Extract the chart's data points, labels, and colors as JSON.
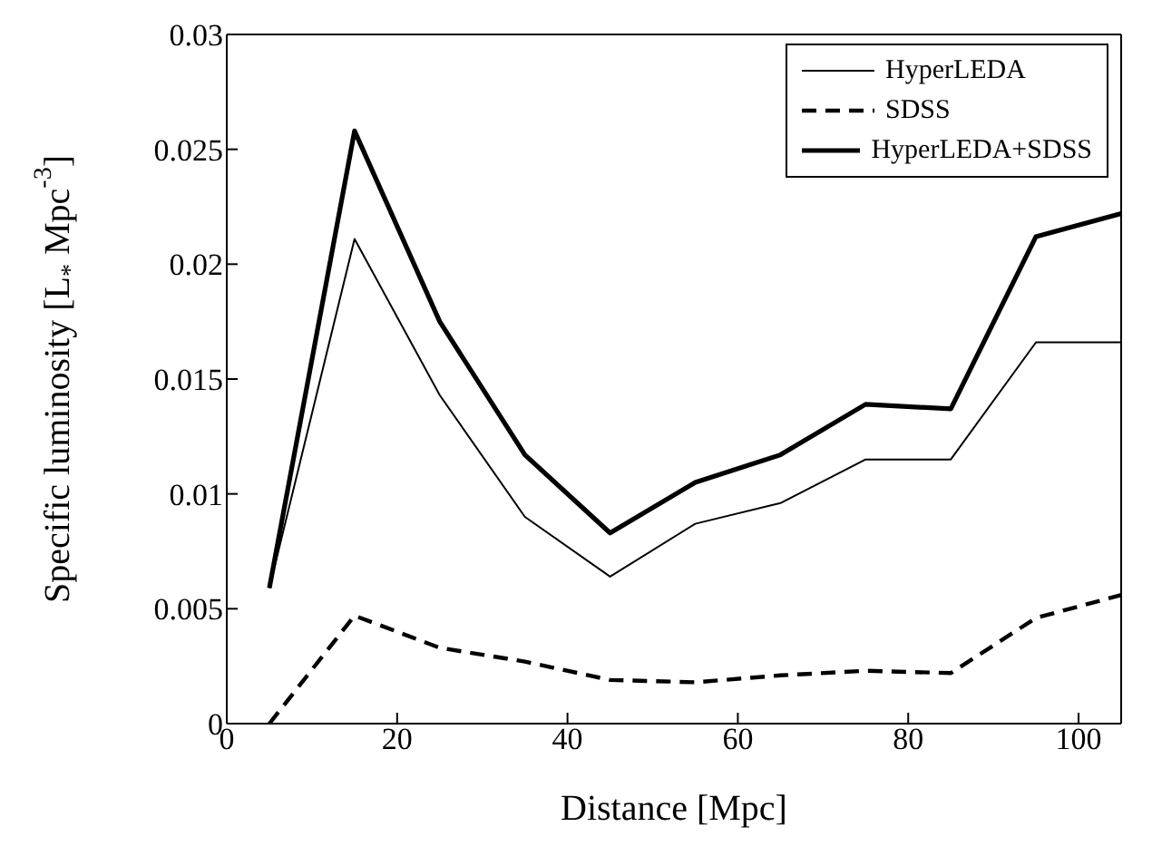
{
  "chart_data": {
    "type": "line",
    "xlabel": "Distance [Mpc]",
    "ylabel": "Specific luminosity [L$_{*}$ Mpc$^{-3}$]",
    "x": [
      5,
      15,
      25,
      35,
      45,
      55,
      65,
      75,
      85,
      95,
      105
    ],
    "series": [
      {
        "name": "HyperLEDA",
        "color": "#000000",
        "line_style": "solid",
        "values": [
          0.0059,
          0.0211,
          0.0143,
          0.009,
          0.0064,
          0.0087,
          0.0096,
          0.0115,
          0.0115,
          0.0166,
          0.0166
        ]
      },
      {
        "name": "SDSS",
        "color": "#000000",
        "line_style": "dashed",
        "values": [
          0,
          0.0047,
          0.0033,
          0.0027,
          0.0019,
          0.0018,
          0.0021,
          0.0023,
          0.0022,
          0.0046,
          0.0056
        ]
      },
      {
        "name": "HyperLEDA+SDSS",
        "color": "#000000",
        "line_style": "solid",
        "values": [
          0.0059,
          0.0258,
          0.0175,
          0.0117,
          0.0083,
          0.0105,
          0.0117,
          0.0139,
          0.0137,
          0.0212,
          0.0222
        ]
      }
    ],
    "xlim": [
      0,
      105
    ],
    "xticks": [
      0,
      20,
      40,
      60,
      80,
      100
    ],
    "ylim": [
      0,
      0.03
    ],
    "yticks": [
      0,
      0.005,
      0.01,
      0.015,
      0.02,
      0.025,
      0.03
    ],
    "grid": false,
    "legend": "top right",
    "marker": "none"
  }
}
